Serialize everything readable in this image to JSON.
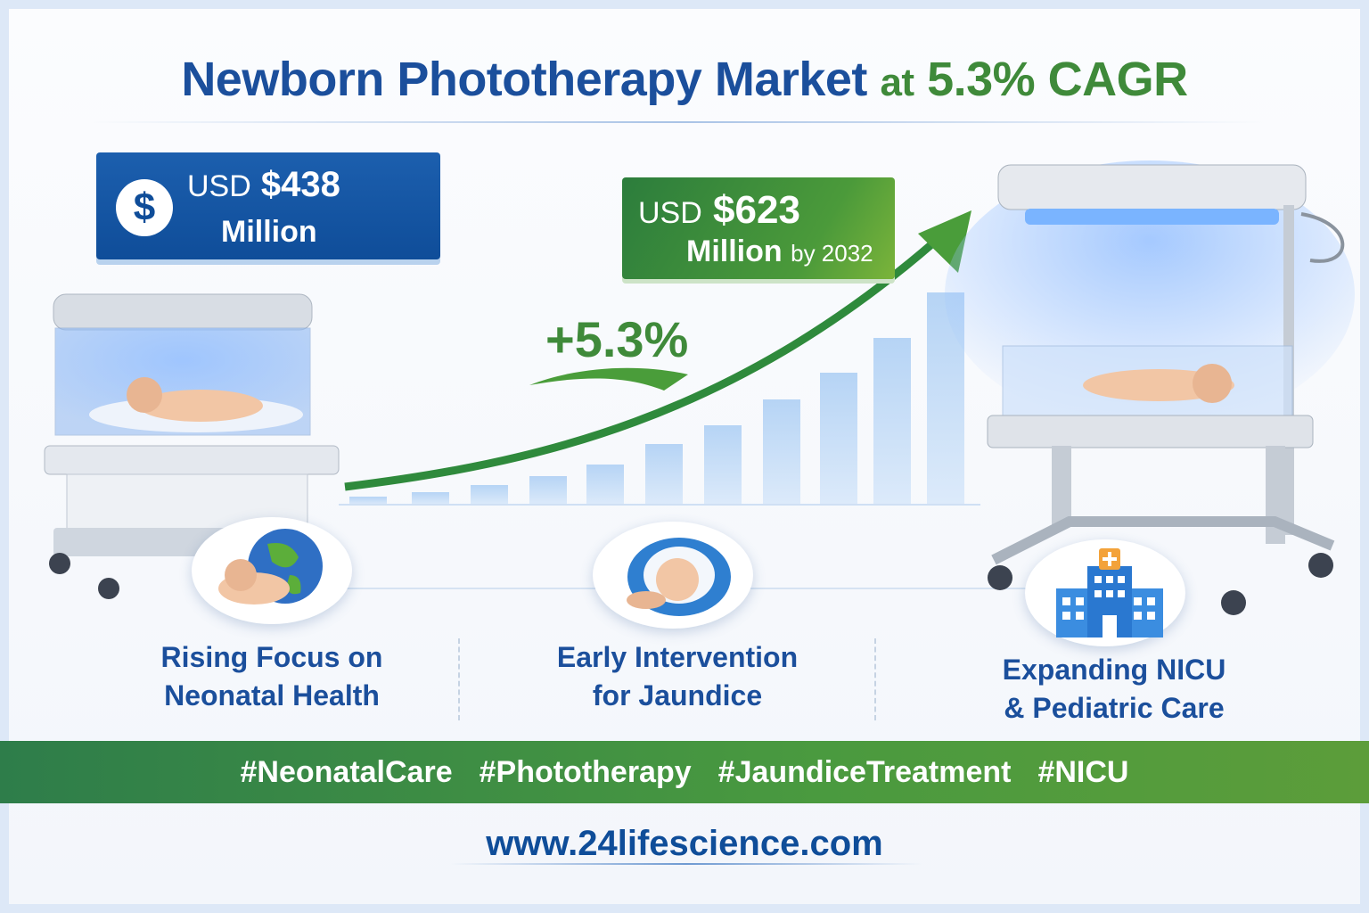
{
  "title": {
    "main": "Newborn Phototherapy Market",
    "at": "at",
    "cagr": "5.3% CAGR"
  },
  "current_value": {
    "icon": "dollar-icon",
    "prefix": "USD",
    "amount": "$438",
    "unit": "Million"
  },
  "forecast_value": {
    "prefix": "USD",
    "amount": "$623",
    "unit": "Million",
    "suffix": "by 2032"
  },
  "growth_label": "+5.3%",
  "drivers": [
    {
      "icon": "baby-globe-icon",
      "line1": "Rising Focus on",
      "line2": "Neonatal Health"
    },
    {
      "icon": "swaddled-baby-icon",
      "line1": "Early Intervention",
      "line2": "for Jaundice"
    },
    {
      "icon": "hospital-icon",
      "line1": "Expanding NICU",
      "line2": "& Pediatric Care"
    }
  ],
  "hashtags": [
    "#NeonatalCare",
    "#Phototherapy",
    "#JaundiceTreatment",
    "#NICU"
  ],
  "website": "www.24lifescience.com",
  "colors": {
    "blue": "#1b4f9c",
    "green": "#3f8a3a",
    "light_blue": "#bcd7f5"
  }
}
